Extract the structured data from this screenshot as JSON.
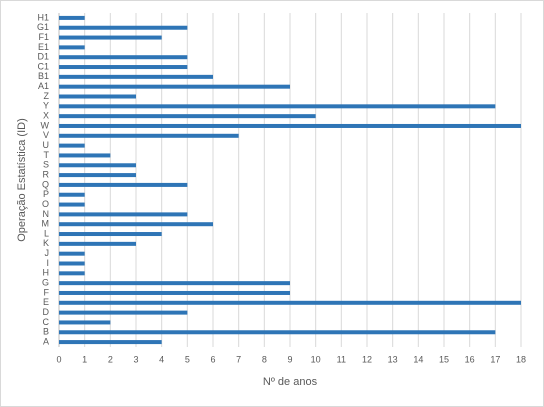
{
  "chart_data": {
    "type": "bar",
    "orientation": "horizontal",
    "x_label": "Nº de anos",
    "y_label": "Operação Estatística (ID)",
    "categories": [
      "A",
      "B",
      "C",
      "D",
      "E",
      "F",
      "G",
      "H",
      "I",
      "J",
      "K",
      "L",
      "M",
      "N",
      "O",
      "P",
      "Q",
      "R",
      "S",
      "T",
      "U",
      "V",
      "W",
      "X",
      "Y",
      "Z",
      "A1",
      "B1",
      "C1",
      "D1",
      "E1",
      "F1",
      "G1",
      "H1"
    ],
    "values": [
      4,
      17,
      2,
      5,
      18,
      9,
      9,
      1,
      1,
      1,
      3,
      4,
      6,
      5,
      1,
      1,
      5,
      3,
      3,
      2,
      1,
      7,
      18,
      10,
      17,
      3,
      9,
      6,
      5,
      5,
      1,
      4,
      5,
      1
    ],
    "color": "#2e75b6",
    "xlim": [
      0,
      18
    ],
    "xticks": [
      0,
      1,
      2,
      3,
      4,
      5,
      6,
      7,
      8,
      9,
      10,
      11,
      12,
      13,
      14,
      15,
      16,
      17,
      18
    ],
    "grid": true
  }
}
